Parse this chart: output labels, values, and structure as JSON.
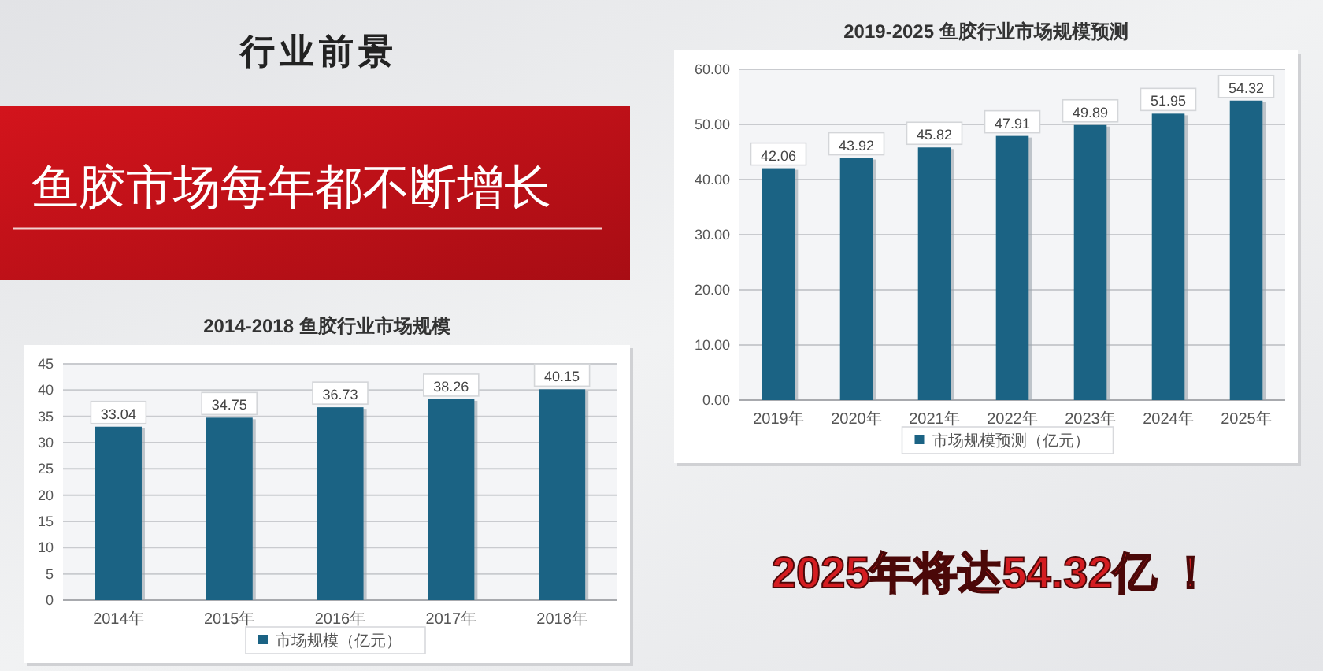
{
  "chart_data": [
    {
      "type": "other",
      "title": "行业前景",
      "annotations": [
        "鱼胶市场每年都不断增长"
      ]
    },
    {
      "type": "bar",
      "title": "2014-2018 鱼胶行业市场规模",
      "categories": [
        "2014年",
        "2015年",
        "2016年",
        "2017年",
        "2018年"
      ],
      "series": [
        {
          "name": "市场规模（亿元）",
          "color": "#1b6384",
          "values": [
            33.04,
            34.75,
            36.73,
            38.26,
            40.15
          ]
        }
      ],
      "ylim": [
        0,
        45
      ],
      "yticks": [
        0,
        5,
        10,
        15,
        20,
        25,
        30,
        35,
        40,
        45
      ],
      "grid": "y",
      "legend": "bottom",
      "data_labels": true
    },
    {
      "type": "bar",
      "title": "2019-2025 鱼胶行业市场规模预测",
      "categories": [
        "2019年",
        "2020年",
        "2021年",
        "2022年",
        "2023年",
        "2024年",
        "2025年"
      ],
      "series": [
        {
          "name": "市场规模预测（亿元）",
          "color": "#1b6384",
          "values": [
            42.06,
            43.92,
            45.82,
            47.91,
            49.89,
            51.95,
            54.32
          ]
        }
      ],
      "ylim": [
        0,
        60
      ],
      "yticks": [
        {
          "value": 0,
          "label": "0.00"
        },
        {
          "value": 10,
          "label": "10.00"
        },
        {
          "value": 20,
          "label": "20.00"
        },
        {
          "value": 30,
          "label": "30.00"
        },
        {
          "value": 40,
          "label": "40.00"
        },
        {
          "value": 50,
          "label": "50.00"
        },
        {
          "value": 60,
          "label": "60.00"
        }
      ],
      "grid": "y",
      "legend": "bottom",
      "data_labels": true
    },
    {
      "type": "other",
      "annotations": [
        "2025年将达54.32亿 ！"
      ]
    }
  ]
}
